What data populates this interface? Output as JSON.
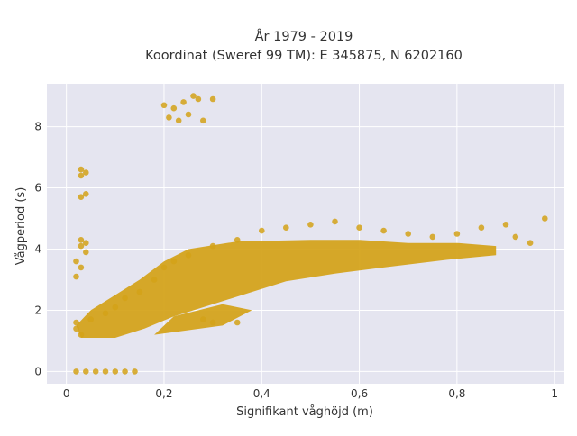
{
  "chart_data": {
    "type": "scatter",
    "title_line1": "År 1979 - 2019",
    "title_line2": "Koordinat (Sweref 99 TM): E 345875, N 6202160",
    "xlabel": "Signifikant våghöjd (m)",
    "ylabel": "Vågperiod (s)",
    "xlim": [
      -0.04,
      1.02
    ],
    "ylim": [
      -0.4,
      9.4
    ],
    "x_ticks": [
      0,
      0.2,
      0.4,
      0.6,
      0.8,
      1.0
    ],
    "x_tick_labels": [
      "0",
      "0,2",
      "0,4",
      "0,6",
      "0,8",
      "1"
    ],
    "y_ticks": [
      0,
      2,
      4,
      6,
      8
    ],
    "y_tick_labels": [
      "0",
      "2",
      "4",
      "6",
      "8"
    ],
    "grid": true,
    "plot_background": "#e5e5f0",
    "marker_color": "#d4a217",
    "points": [
      [
        0.03,
        6.6
      ],
      [
        0.04,
        6.5
      ],
      [
        0.03,
        6.4
      ],
      [
        0.04,
        5.8
      ],
      [
        0.03,
        5.7
      ],
      [
        0.03,
        4.3
      ],
      [
        0.04,
        4.2
      ],
      [
        0.03,
        4.1
      ],
      [
        0.04,
        3.9
      ],
      [
        0.02,
        3.6
      ],
      [
        0.03,
        3.4
      ],
      [
        0.02,
        3.1
      ],
      [
        0.2,
        8.7
      ],
      [
        0.22,
        8.6
      ],
      [
        0.24,
        8.8
      ],
      [
        0.26,
        9.0
      ],
      [
        0.27,
        8.9
      ],
      [
        0.21,
        8.3
      ],
      [
        0.23,
        8.2
      ],
      [
        0.25,
        8.4
      ],
      [
        0.28,
        8.2
      ],
      [
        0.3,
        8.9
      ],
      [
        0.02,
        1.6
      ],
      [
        0.02,
        1.4
      ],
      [
        0.03,
        1.2
      ],
      [
        0.05,
        1.7
      ],
      [
        0.08,
        1.9
      ],
      [
        0.1,
        2.1
      ],
      [
        0.12,
        2.4
      ],
      [
        0.15,
        2.6
      ],
      [
        0.18,
        3.0
      ],
      [
        0.2,
        3.4
      ],
      [
        0.22,
        3.6
      ],
      [
        0.25,
        3.8
      ],
      [
        0.3,
        4.1
      ],
      [
        0.35,
        4.3
      ],
      [
        0.4,
        4.6
      ],
      [
        0.45,
        4.7
      ],
      [
        0.5,
        4.8
      ],
      [
        0.55,
        4.9
      ],
      [
        0.6,
        4.7
      ],
      [
        0.65,
        4.6
      ],
      [
        0.7,
        4.5
      ],
      [
        0.75,
        4.4
      ],
      [
        0.8,
        4.5
      ],
      [
        0.85,
        4.7
      ],
      [
        0.9,
        4.8
      ],
      [
        0.92,
        4.4
      ],
      [
        0.98,
        5.0
      ],
      [
        0.95,
        4.2
      ],
      [
        0.3,
        1.6
      ],
      [
        0.35,
        1.6
      ],
      [
        0.28,
        1.7
      ],
      [
        0.02,
        0.0
      ],
      [
        0.04,
        0.0
      ],
      [
        0.06,
        0.0
      ],
      [
        0.08,
        0.0
      ],
      [
        0.1,
        0.0
      ],
      [
        0.12,
        0.0
      ],
      [
        0.14,
        0.0
      ]
    ]
  }
}
